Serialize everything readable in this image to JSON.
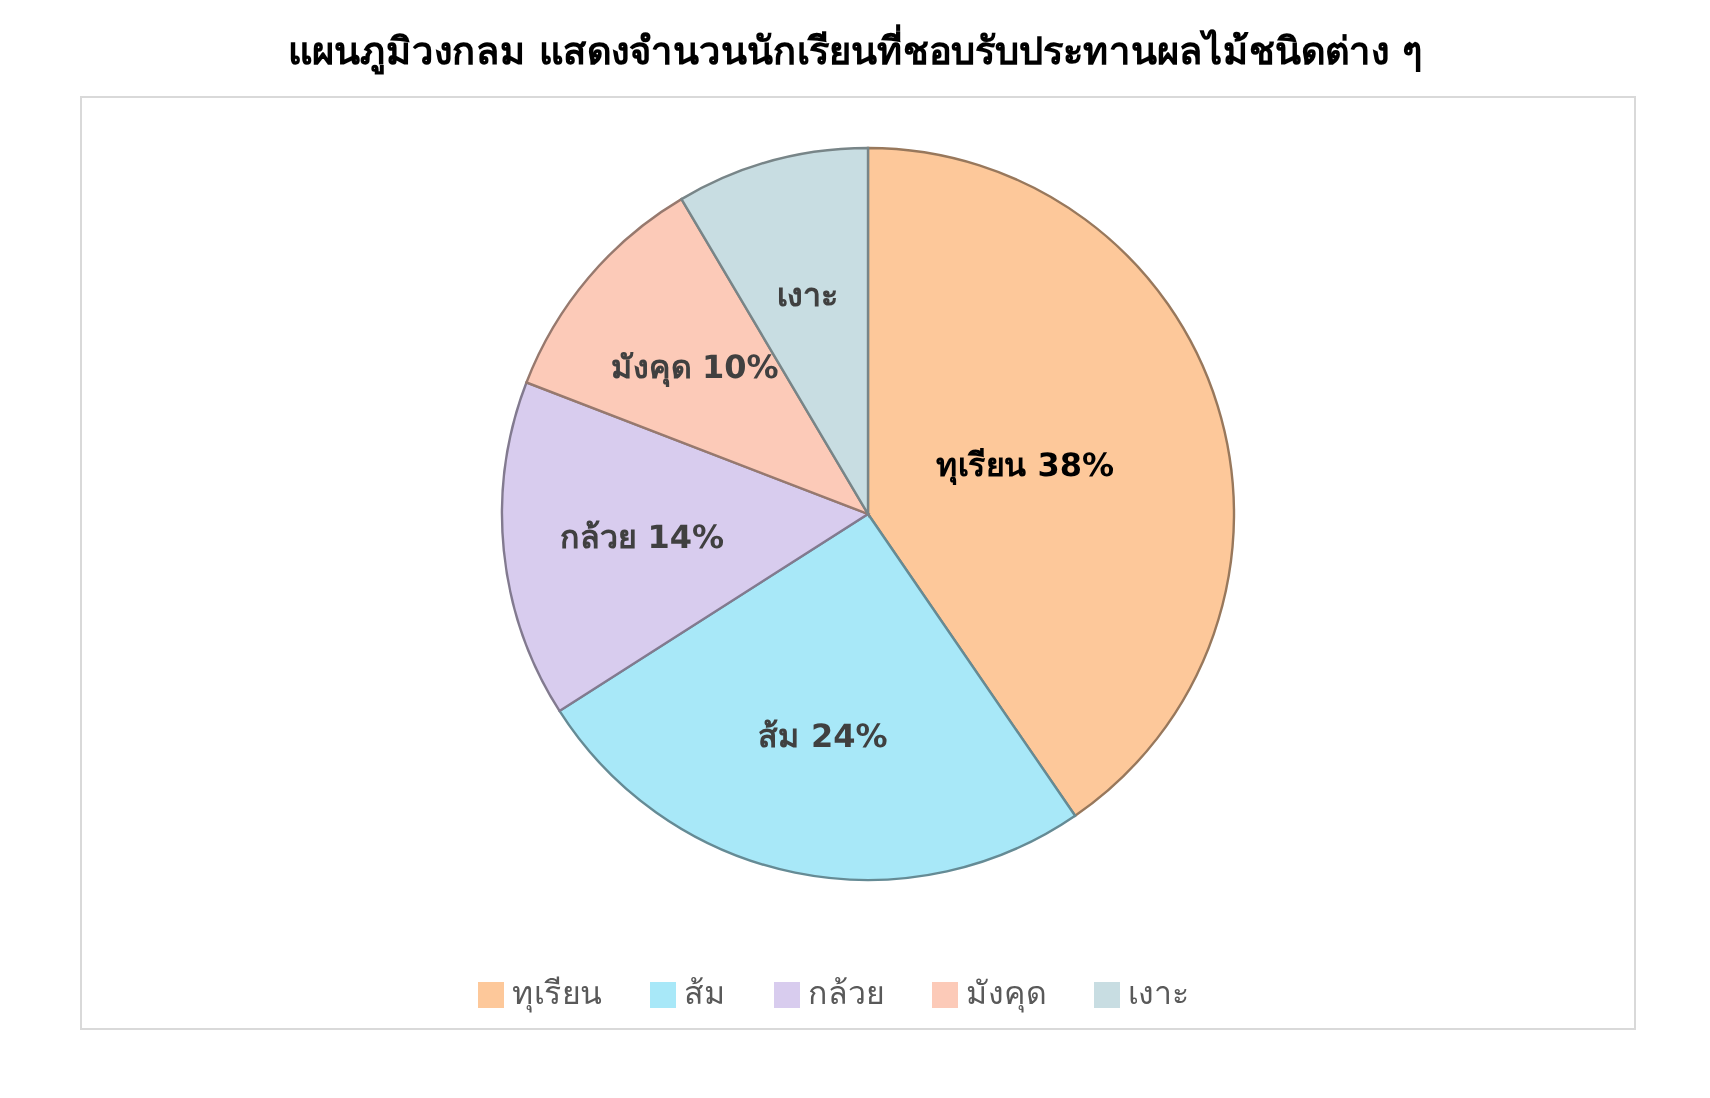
{
  "chart_data": {
    "type": "pie",
    "title": "แผนภูมิวงกลม แสดงจำนวนนักเรียนที่ชอบรับประทานผลไม้ชนิดต่าง ๆ",
    "categories": [
      "ทุเรียน",
      "ส้ม",
      "กล้วย",
      "มังคุด",
      "เงาะ"
    ],
    "values": [
      38,
      24,
      14,
      10,
      8
    ],
    "value_labels": [
      "ทุเรียน 38%",
      "ส้ม 24%",
      "กล้วย 14%",
      "มังคุด 10%",
      "เงาะ"
    ],
    "colors": [
      "#fdc89a",
      "#a8e8f8",
      "#d8ccee",
      "#fccab8",
      "#c8dde2"
    ],
    "legend": "bottom"
  }
}
